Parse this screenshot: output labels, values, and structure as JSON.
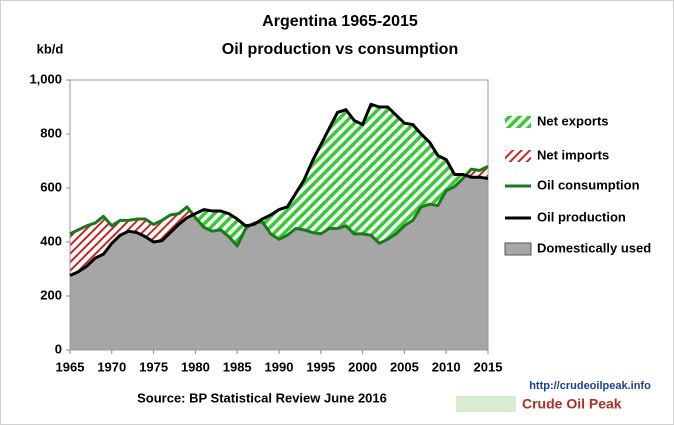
{
  "chart_data": {
    "type": "area",
    "title": "Argentina 1965-2015",
    "subtitle": "Oil production vs consumption",
    "ylabel": "kb/d",
    "source": "Source: BP Statistical Review  June 2016",
    "watermark_url": "http://crudeoilpeak.info",
    "watermark_name": "Crude Oil Peak",
    "x": [
      1965,
      1966,
      1967,
      1968,
      1969,
      1970,
      1971,
      1972,
      1973,
      1974,
      1975,
      1976,
      1977,
      1978,
      1979,
      1980,
      1981,
      1982,
      1983,
      1984,
      1985,
      1986,
      1987,
      1988,
      1989,
      1990,
      1991,
      1992,
      1993,
      1994,
      1995,
      1996,
      1997,
      1998,
      1999,
      2000,
      2001,
      2002,
      2003,
      2004,
      2005,
      2006,
      2007,
      2008,
      2009,
      2010,
      2011,
      2012,
      2013,
      2014,
      2015
    ],
    "xlim": [
      1965,
      2015
    ],
    "xticks": [
      1965,
      1970,
      1975,
      1980,
      1985,
      1990,
      1995,
      2000,
      2005,
      2010,
      2015
    ],
    "ylim": [
      0,
      1000
    ],
    "yticks": [
      0,
      200,
      400,
      600,
      800,
      {
        "value": 1000,
        "label": "1,000"
      }
    ],
    "series": [
      {
        "name": "Oil consumption",
        "color": "#1a7a1a",
        "values": [
          430,
          445,
          460,
          470,
          495,
          460,
          480,
          480,
          485,
          485,
          465,
          480,
          500,
          505,
          530,
          490,
          455,
          440,
          445,
          420,
          385,
          450,
          470,
          475,
          430,
          410,
          425,
          450,
          445,
          435,
          430,
          450,
          450,
          460,
          430,
          430,
          425,
          395,
          410,
          430,
          460,
          480,
          530,
          540,
          535,
          590,
          605,
          635,
          670,
          665,
          680
        ]
      },
      {
        "name": "Oil production",
        "color": "#000000",
        "values": [
          276,
          290,
          310,
          340,
          355,
          395,
          425,
          440,
          435,
          420,
          400,
          405,
          435,
          465,
          490,
          505,
          520,
          515,
          515,
          505,
          485,
          460,
          465,
          485,
          500,
          520,
          530,
          580,
          630,
          700,
          760,
          820,
          880,
          890,
          850,
          835,
          910,
          900,
          900,
          870,
          840,
          835,
          800,
          770,
          720,
          705,
          650,
          650,
          640,
          640,
          635
        ]
      }
    ],
    "fills": [
      {
        "name": "Net exports",
        "color": "#33cc33"
      },
      {
        "name": "Net imports",
        "color": "#cc2222"
      },
      {
        "name": "Domestically used",
        "color": "#a6a6a6"
      }
    ]
  }
}
